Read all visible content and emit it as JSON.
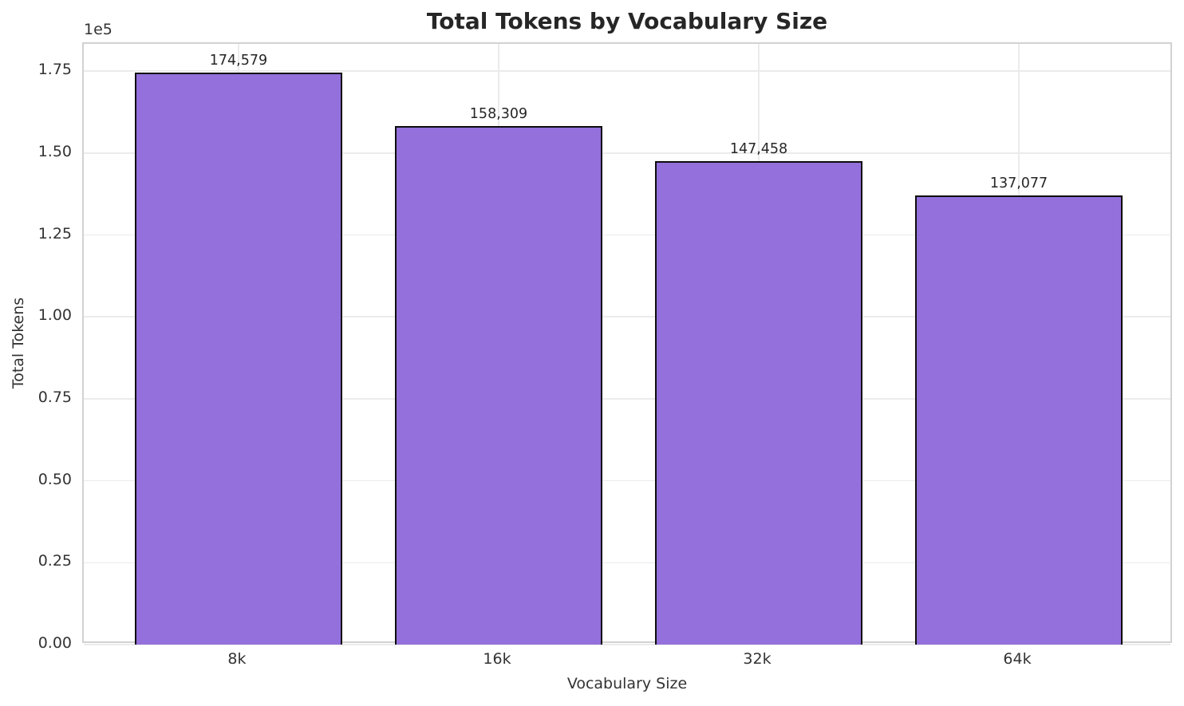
{
  "chart_data": {
    "type": "bar",
    "title": "Total Tokens by Vocabulary Size",
    "xlabel": "Vocabulary Size",
    "ylabel": "Total Tokens",
    "y_offset_label": "1e5",
    "categories": [
      "8k",
      "16k",
      "32k",
      "64k"
    ],
    "values": [
      174579,
      158309,
      147458,
      137077
    ],
    "bar_labels": [
      "174,579",
      "158,309",
      "147,458",
      "137,077"
    ],
    "yticks": [
      0,
      25000,
      50000,
      75000,
      100000,
      125000,
      150000,
      175000
    ],
    "ytick_labels": [
      "0.00",
      "0.25",
      "0.50",
      "0.75",
      "1.00",
      "1.25",
      "1.50",
      "1.75"
    ],
    "ylim": [
      0,
      183308
    ],
    "xlim": [
      -0.595,
      3.595
    ],
    "bar_width_units": 0.8,
    "grid": true,
    "legend_position": "none",
    "colors": {
      "bar_fill": "#9370DB",
      "bar_edge": "#0d0d0d",
      "grid": "#ebebeb",
      "spine": "#d2d2d2",
      "title_text": "#262626",
      "tick_text": "#333333",
      "bar_label_text": "#262626",
      "background": "#ffffff"
    }
  }
}
